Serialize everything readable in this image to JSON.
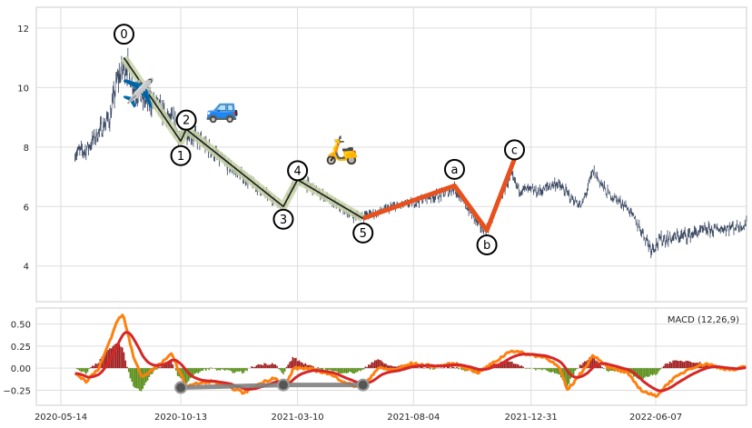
{
  "chart_data": {
    "type": "line",
    "price_panel": {
      "ylim": [
        2.8,
        12.7
      ],
      "yticks": [
        4,
        6,
        8,
        10,
        12
      ],
      "series_color": "#2f3e5a",
      "price_anchors": [
        [
          "2020-06-01",
          7.8
        ],
        [
          "2020-06-15",
          7.9
        ],
        [
          "2020-07-01",
          8.5
        ],
        [
          "2020-07-15",
          9.0
        ],
        [
          "2020-07-25",
          10.3
        ],
        [
          "2020-08-05",
          10.8
        ],
        [
          "2020-08-15",
          10.0
        ],
        [
          "2020-08-25",
          9.6
        ],
        [
          "2020-09-10",
          9.5
        ],
        [
          "2020-09-25",
          9.0
        ],
        [
          "2020-10-05",
          8.8
        ],
        [
          "2020-10-13",
          8.2
        ],
        [
          "2020-10-20",
          8.6
        ],
        [
          "2020-11-01",
          8.3
        ],
        [
          "2020-11-20",
          7.9
        ],
        [
          "2020-12-10",
          7.4
        ],
        [
          "2021-01-01",
          7.0
        ],
        [
          "2021-01-20",
          6.6
        ],
        [
          "2021-02-10",
          6.2
        ],
        [
          "2021-02-20",
          6.0
        ],
        [
          "2021-03-01",
          6.5
        ],
        [
          "2021-03-10",
          6.9
        ],
        [
          "2021-03-25",
          6.7
        ],
        [
          "2021-04-15",
          6.3
        ],
        [
          "2021-05-01",
          6.0
        ],
        [
          "2021-05-20",
          5.7
        ],
        [
          "2021-06-01",
          5.7
        ],
        [
          "2021-06-20",
          5.8
        ],
        [
          "2021-07-10",
          6.0
        ],
        [
          "2021-08-01",
          6.1
        ],
        [
          "2021-08-20",
          6.3
        ],
        [
          "2021-09-10",
          6.4
        ],
        [
          "2021-09-25",
          6.6
        ],
        [
          "2021-10-10",
          6.0
        ],
        [
          "2021-10-25",
          5.4
        ],
        [
          "2021-11-05",
          5.2
        ],
        [
          "2021-11-20",
          6.2
        ],
        [
          "2021-12-05",
          7.0
        ],
        [
          "2021-12-15",
          6.6
        ],
        [
          "2022-01-10",
          6.5
        ],
        [
          "2022-02-01",
          6.8
        ],
        [
          "2022-02-20",
          6.3
        ],
        [
          "2022-03-05",
          6.0
        ],
        [
          "2022-03-20",
          7.2
        ],
        [
          "2022-04-05",
          6.5
        ],
        [
          "2022-05-01",
          6.0
        ],
        [
          "2022-05-20",
          5.2
        ],
        [
          "2022-06-01",
          4.6
        ],
        [
          "2022-06-15",
          4.9
        ],
        [
          "2022-07-10",
          5.0
        ],
        [
          "2022-08-10",
          5.2
        ],
        [
          "2022-09-10",
          5.3
        ],
        [
          "2022-09-30",
          5.4
        ]
      ],
      "impulse_wave": [
        {
          "label": "0",
          "date": "2020-08-02",
          "value": 11.0
        },
        {
          "label": "1",
          "date": "2020-10-13",
          "value": 8.2
        },
        {
          "label": "2",
          "date": "2020-10-20",
          "value": 8.6
        },
        {
          "label": "3",
          "date": "2021-02-20",
          "value": 6.0
        },
        {
          "label": "4",
          "date": "2021-03-10",
          "value": 6.9
        },
        {
          "label": "5",
          "date": "2021-06-01",
          "value": 5.6
        }
      ],
      "corrective_wave": [
        {
          "label": "5",
          "date": "2021-06-01",
          "value": 5.6
        },
        {
          "label": "a",
          "date": "2021-09-25",
          "value": 6.7
        },
        {
          "label": "b",
          "date": "2021-11-05",
          "value": 5.2
        },
        {
          "label": "c",
          "date": "2021-12-10",
          "value": 7.6
        }
      ],
      "impulse_color": "#1a1a1a",
      "impulse_halo_color": "#c8d4a8",
      "corrective_color": "#e8501c",
      "emojis": [
        {
          "name": "airplane",
          "glyph": "✈️",
          "date": "2020-08-20",
          "value": 9.5
        },
        {
          "name": "car",
          "glyph": "🚙",
          "date": "2020-12-05",
          "value": 9.0
        },
        {
          "name": "scooter",
          "glyph": "🛵",
          "date": "2021-05-05",
          "value": 7.6
        }
      ]
    },
    "macd_panel": {
      "legend": "MACD (12,26,9)",
      "ylim": [
        -0.42,
        0.68
      ],
      "yticks": [
        0.5,
        0.25,
        0.0,
        -0.25
      ],
      "ytick_labels": [
        "0.50",
        "0.25",
        "0.00",
        "−0.25"
      ],
      "macd_color": "#ff7f0e",
      "signal_color": "#d62728",
      "hist_pos_color": "#a12020",
      "hist_neg_color": "#5a8f1a",
      "macd_anchors": [
        [
          "2020-06-01",
          -0.05
        ],
        [
          "2020-06-15",
          -0.15
        ],
        [
          "2020-07-01",
          0.0
        ],
        [
          "2020-07-15",
          0.3
        ],
        [
          "2020-07-25",
          0.55
        ],
        [
          "2020-08-01",
          0.6
        ],
        [
          "2020-08-15",
          0.1
        ],
        [
          "2020-08-25",
          -0.1
        ],
        [
          "2020-09-10",
          0.0
        ],
        [
          "2020-09-25",
          0.1
        ],
        [
          "2020-10-01",
          0.18
        ],
        [
          "2020-10-10",
          -0.02
        ],
        [
          "2020-10-20",
          -0.2
        ],
        [
          "2020-11-01",
          -0.18
        ],
        [
          "2020-11-20",
          -0.15
        ],
        [
          "2020-12-10",
          -0.2
        ],
        [
          "2021-01-01",
          -0.28
        ],
        [
          "2021-01-20",
          -0.18
        ],
        [
          "2021-02-10",
          -0.1
        ],
        [
          "2021-02-20",
          -0.25
        ],
        [
          "2021-03-05",
          0.0
        ],
        [
          "2021-03-20",
          0.0
        ],
        [
          "2021-04-15",
          -0.05
        ],
        [
          "2021-05-01",
          -0.12
        ],
        [
          "2021-05-20",
          -0.2
        ],
        [
          "2021-06-01",
          -0.2
        ],
        [
          "2021-06-20",
          0.0
        ],
        [
          "2021-07-10",
          -0.02
        ],
        [
          "2021-08-01",
          0.05
        ],
        [
          "2021-09-01",
          0.02
        ],
        [
          "2021-09-25",
          0.05
        ],
        [
          "2021-10-25",
          -0.05
        ],
        [
          "2021-11-20",
          0.1
        ],
        [
          "2021-12-05",
          0.2
        ],
        [
          "2021-12-31",
          0.15
        ],
        [
          "2022-01-20",
          0.12
        ],
        [
          "2022-02-05",
          0.0
        ],
        [
          "2022-02-15",
          -0.25
        ],
        [
          "2022-03-05",
          -0.05
        ],
        [
          "2022-03-20",
          0.15
        ],
        [
          "2022-04-10",
          0.0
        ],
        [
          "2022-05-01",
          -0.05
        ],
        [
          "2022-05-20",
          -0.25
        ],
        [
          "2022-06-07",
          -0.32
        ],
        [
          "2022-06-25",
          -0.15
        ],
        [
          "2022-07-20",
          0.0
        ],
        [
          "2022-08-10",
          0.05
        ],
        [
          "2022-08-30",
          0.0
        ],
        [
          "2022-09-15",
          -0.02
        ],
        [
          "2022-09-30",
          0.02
        ]
      ],
      "wave_markers": [
        {
          "date": "2020-10-13",
          "value": -0.22
        },
        {
          "date": "2021-02-20",
          "value": -0.19
        },
        {
          "date": "2021-06-01",
          "value": -0.19
        }
      ],
      "marker_color": "#808080"
    },
    "x_axis": {
      "tick_labels": [
        "2020-05-14",
        "2020-10-13",
        "2021-03-10",
        "2021-08-04",
        "2021-12-31",
        "2022-06-07"
      ],
      "range": [
        "2020-05-14",
        "2022-10-20"
      ]
    }
  }
}
